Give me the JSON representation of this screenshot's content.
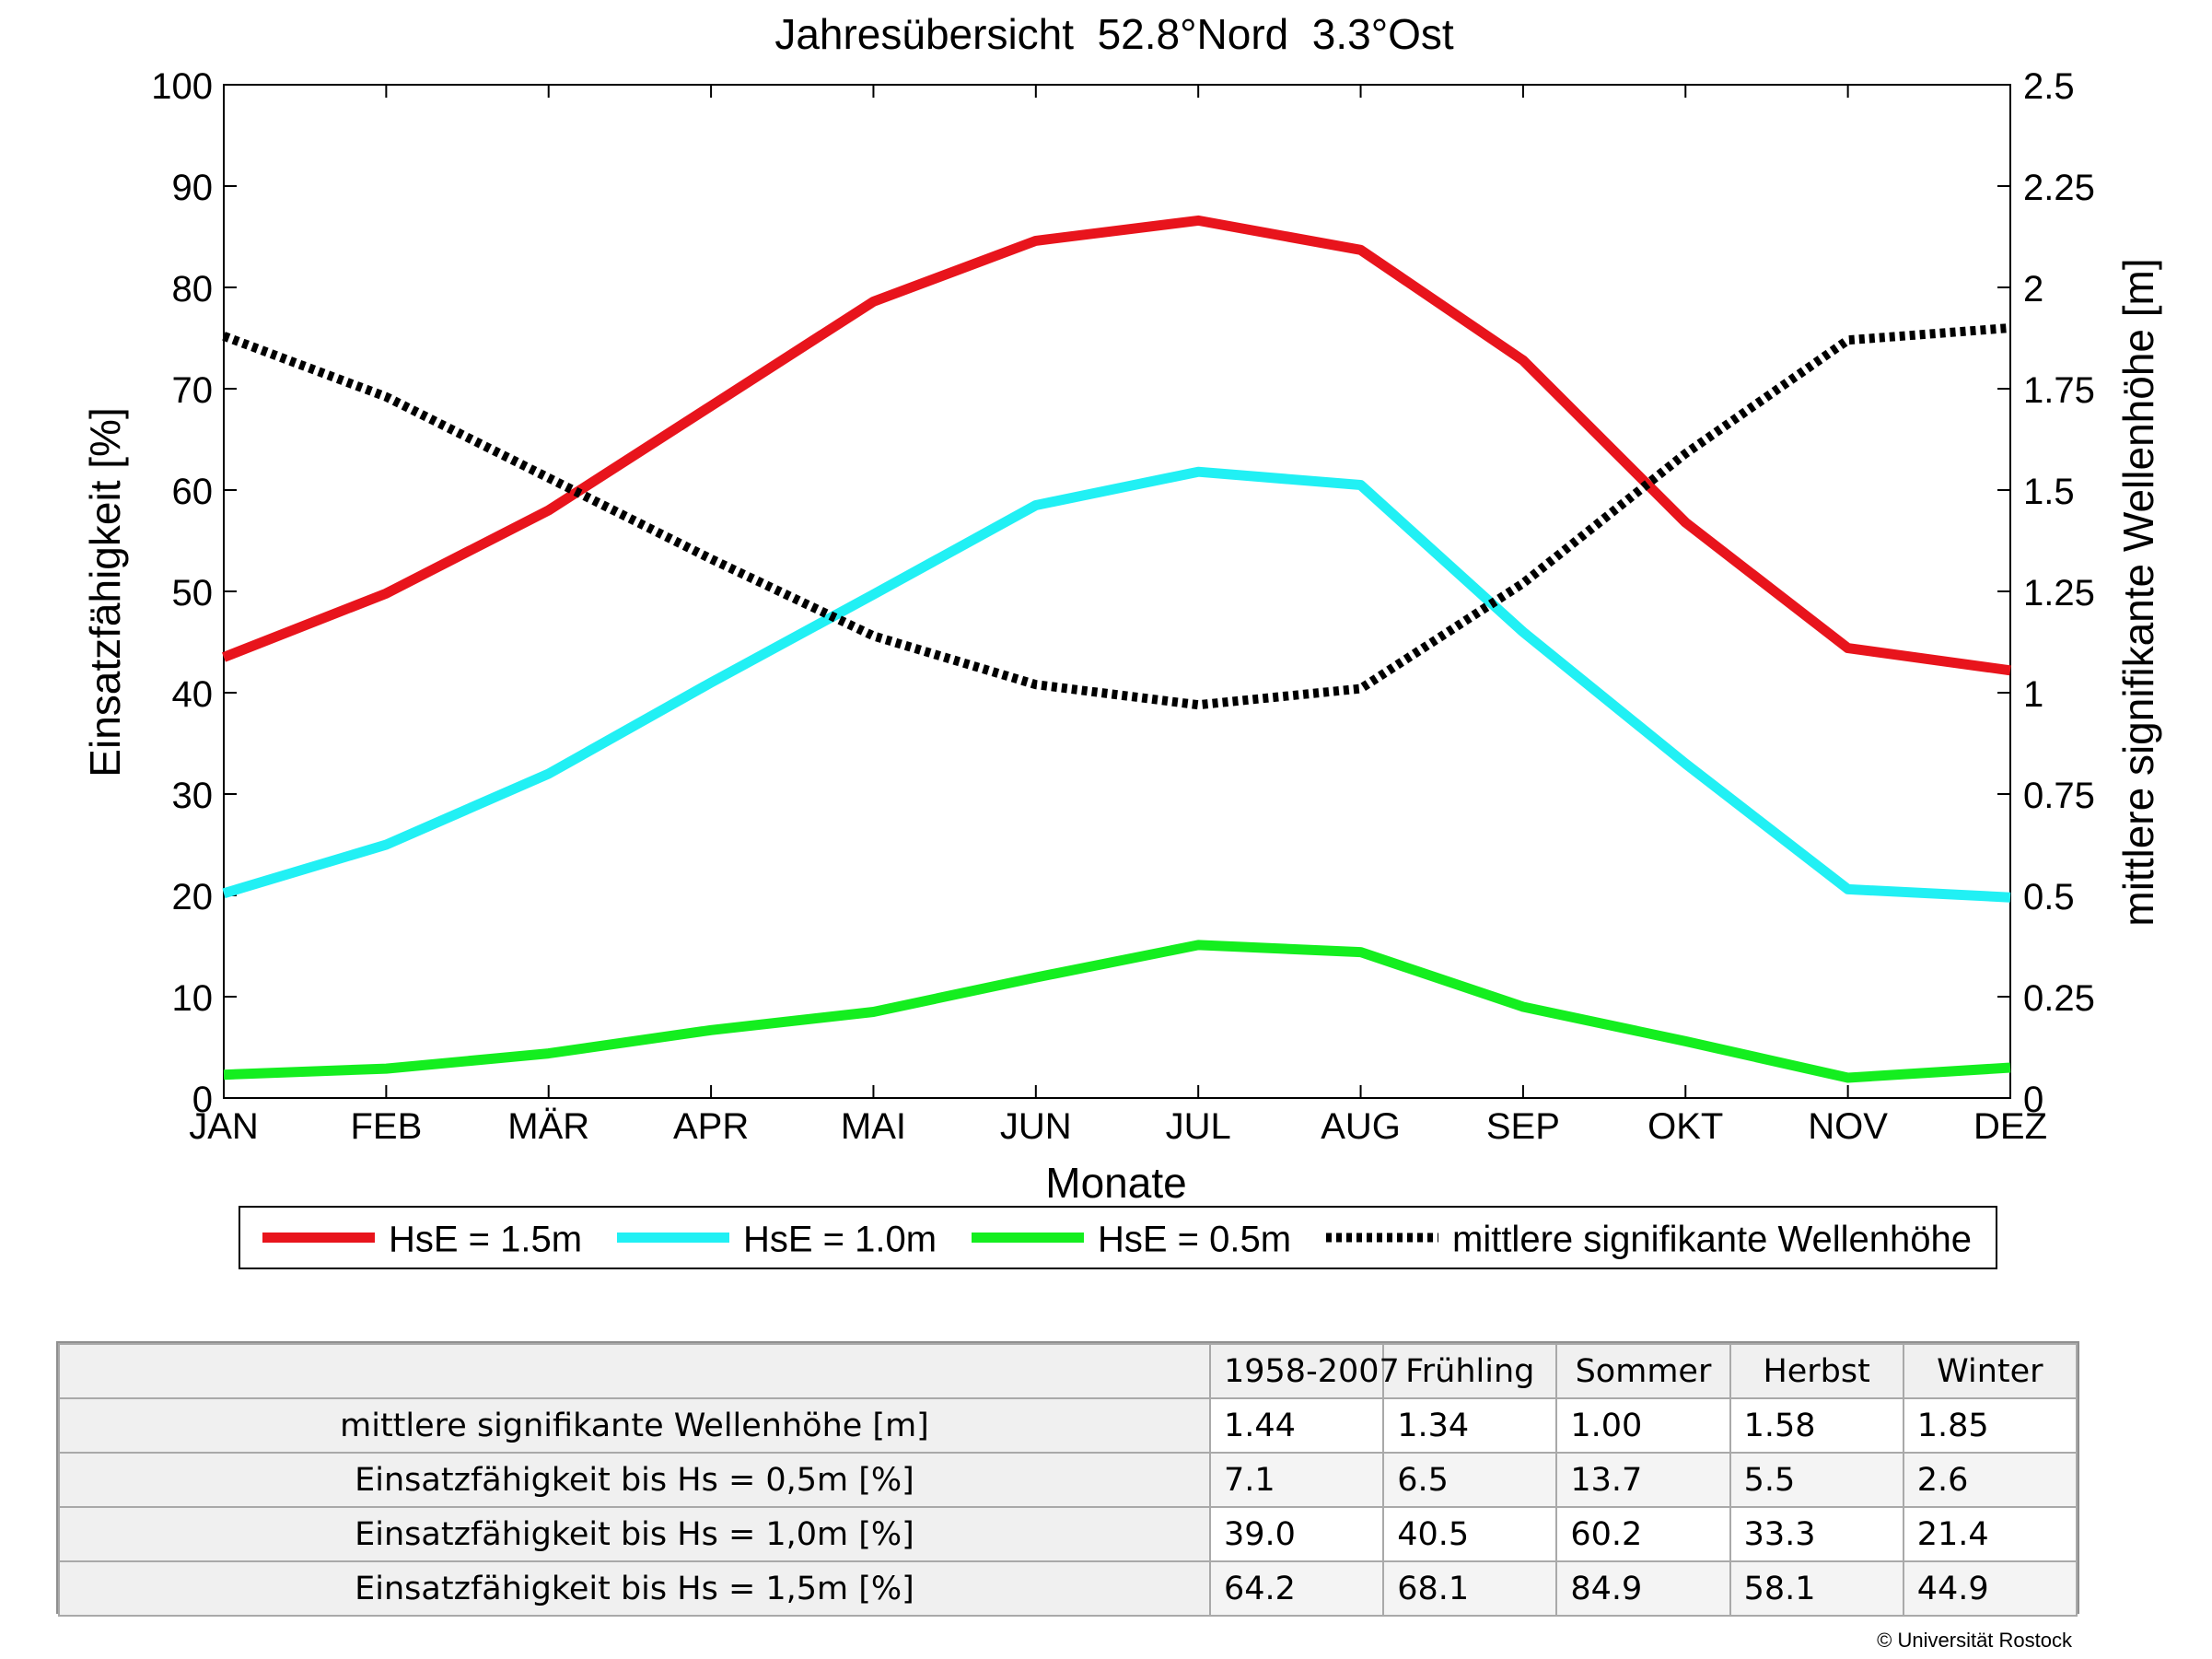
{
  "chart_data": {
    "type": "line",
    "title": "Jahresübersicht  52.8°Nord  3.3°Ost",
    "xlabel": "Monate",
    "ylabel": "Einsatzfähigkeit [%]",
    "y2label": "mittlere signifikante Wellenhöhe [m]",
    "categories": [
      "JAN",
      "FEB",
      "MÄR",
      "APR",
      "MAI",
      "JUN",
      "JUL",
      "AUG",
      "SEP",
      "OKT",
      "NOV",
      "DEZ"
    ],
    "ylim": [
      0,
      100
    ],
    "y2lim": [
      0,
      2.5
    ],
    "yticks": [
      "0",
      "10",
      "20",
      "30",
      "40",
      "50",
      "60",
      "70",
      "80",
      "90",
      "100"
    ],
    "y2ticks": [
      "0",
      "0.25",
      "0.5",
      "0.75",
      "1",
      "1.25",
      "1.5",
      "1.75",
      "2",
      "2.25",
      "2.5"
    ],
    "legend_position": "bottom",
    "series": [
      {
        "name": "HsE = 1.5m",
        "axis": "left",
        "color": "#e8141c",
        "style": "solid",
        "values": [
          43.5,
          49.8,
          58.0,
          68.3,
          78.6,
          84.6,
          86.6,
          83.7,
          72.8,
          56.8,
          44.4,
          42.2
        ]
      },
      {
        "name": "HsE = 1.0m",
        "axis": "left",
        "color": "#21f0f4",
        "style": "solid",
        "values": [
          20.2,
          25.0,
          32.0,
          41.0,
          49.7,
          58.5,
          61.8,
          60.5,
          46.0,
          33.0,
          20.6,
          19.8
        ]
      },
      {
        "name": "HsE = 0.5m",
        "axis": "left",
        "color": "#14ee1f",
        "style": "solid",
        "values": [
          2.3,
          2.9,
          4.4,
          6.7,
          8.5,
          11.9,
          15.1,
          14.4,
          9.0,
          5.6,
          2.0,
          3.0
        ]
      },
      {
        "name": "mittlere signifikante Wellenhöhe",
        "axis": "right",
        "color": "#000000",
        "style": "dotted",
        "values": [
          1.88,
          1.73,
          1.53,
          1.33,
          1.14,
          1.02,
          0.97,
          1.01,
          1.27,
          1.59,
          1.87,
          1.9
        ]
      }
    ]
  },
  "table": {
    "headers": [
      "",
      "1958-2007",
      "Frühling",
      "Sommer",
      "Herbst",
      "Winter"
    ],
    "rows": [
      {
        "label": "mittlere signifikante Wellenhöhe [m]",
        "values": [
          "1.44",
          "1.34",
          "1.00",
          "1.58",
          "1.85"
        ]
      },
      {
        "label": "Einsatzfähigkeit bis Hs = 0,5m [%]",
        "values": [
          "7.1",
          "6.5",
          "13.7",
          "5.5",
          "2.6"
        ]
      },
      {
        "label": "Einsatzfähigkeit bis Hs = 1,0m [%]",
        "values": [
          "39.0",
          "40.5",
          "60.2",
          "33.3",
          "21.4"
        ]
      },
      {
        "label": "Einsatzfähigkeit bis Hs = 1,5m [%]",
        "values": [
          "64.2",
          "68.1",
          "84.9",
          "58.1",
          "44.9"
        ]
      }
    ]
  },
  "footer": {
    "copyright": "© Universität Rostock"
  }
}
